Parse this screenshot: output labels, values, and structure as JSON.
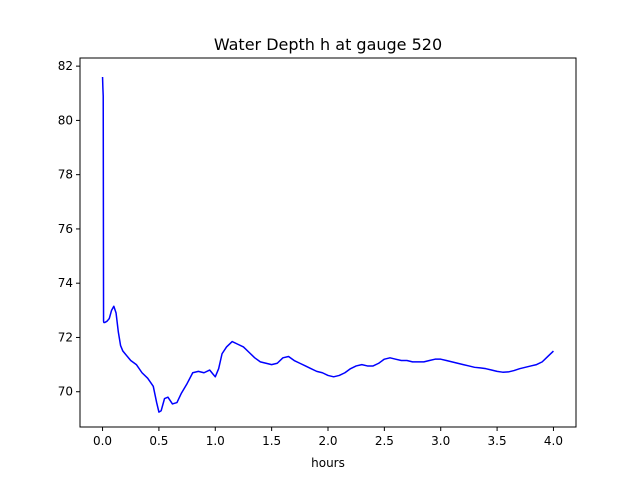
{
  "chart_data": {
    "type": "line",
    "title": "Water Depth h at gauge 520",
    "xlabel": "hours",
    "ylabel": "",
    "xlim": [
      -0.2,
      4.2
    ],
    "ylim": [
      68.7,
      82.3
    ],
    "x_ticks": [
      0.0,
      0.5,
      1.0,
      1.5,
      2.0,
      2.5,
      3.0,
      3.5,
      4.0
    ],
    "x_tick_labels": [
      "0.0",
      "0.5",
      "1.0",
      "1.5",
      "2.0",
      "2.5",
      "3.0",
      "3.5",
      "4.0"
    ],
    "y_ticks": [
      70,
      72,
      74,
      76,
      78,
      80,
      82
    ],
    "y_tick_labels": [
      "70",
      "72",
      "74",
      "76",
      "78",
      "80",
      "82"
    ],
    "grid": false,
    "series": [
      {
        "color": "#0000ff",
        "x": [
          0.0,
          0.003,
          0.006,
          0.009,
          0.012,
          0.02,
          0.04,
          0.06,
          0.08,
          0.1,
          0.12,
          0.14,
          0.16,
          0.18,
          0.2,
          0.25,
          0.3,
          0.35,
          0.4,
          0.45,
          0.48,
          0.5,
          0.52,
          0.55,
          0.58,
          0.62,
          0.66,
          0.7,
          0.75,
          0.8,
          0.85,
          0.9,
          0.95,
          0.98,
          1.0,
          1.03,
          1.06,
          1.1,
          1.15,
          1.2,
          1.25,
          1.3,
          1.35,
          1.4,
          1.45,
          1.5,
          1.55,
          1.6,
          1.65,
          1.7,
          1.75,
          1.8,
          1.85,
          1.9,
          1.95,
          2.0,
          2.05,
          2.1,
          2.15,
          2.2,
          2.25,
          2.3,
          2.35,
          2.4,
          2.45,
          2.5,
          2.55,
          2.6,
          2.65,
          2.7,
          2.75,
          2.8,
          2.85,
          2.9,
          2.95,
          3.0,
          3.05,
          3.1,
          3.15,
          3.2,
          3.25,
          3.3,
          3.35,
          3.4,
          3.45,
          3.5,
          3.55,
          3.6,
          3.65,
          3.7,
          3.75,
          3.8,
          3.85,
          3.9,
          3.95,
          4.0
        ],
        "y": [
          81.6,
          81.2,
          80.9,
          72.6,
          72.55,
          72.55,
          72.6,
          72.7,
          73.0,
          73.15,
          72.9,
          72.2,
          71.7,
          71.5,
          71.4,
          71.15,
          71.0,
          70.7,
          70.5,
          70.2,
          69.6,
          69.25,
          69.3,
          69.75,
          69.8,
          69.55,
          69.6,
          69.95,
          70.3,
          70.7,
          70.75,
          70.7,
          70.8,
          70.65,
          70.55,
          70.85,
          71.4,
          71.65,
          71.85,
          71.75,
          71.65,
          71.45,
          71.25,
          71.1,
          71.05,
          71.0,
          71.05,
          71.25,
          71.3,
          71.15,
          71.05,
          70.95,
          70.85,
          70.75,
          70.7,
          70.6,
          70.55,
          70.6,
          70.7,
          70.85,
          70.95,
          71.0,
          70.95,
          70.95,
          71.05,
          71.2,
          71.25,
          71.2,
          71.15,
          71.15,
          71.1,
          71.1,
          71.1,
          71.15,
          71.2,
          71.2,
          71.15,
          71.1,
          71.05,
          71.0,
          70.95,
          70.9,
          70.88,
          70.85,
          70.8,
          70.75,
          70.72,
          70.73,
          70.78,
          70.85,
          70.9,
          70.95,
          71.0,
          71.1,
          71.3,
          71.5
        ]
      }
    ]
  }
}
